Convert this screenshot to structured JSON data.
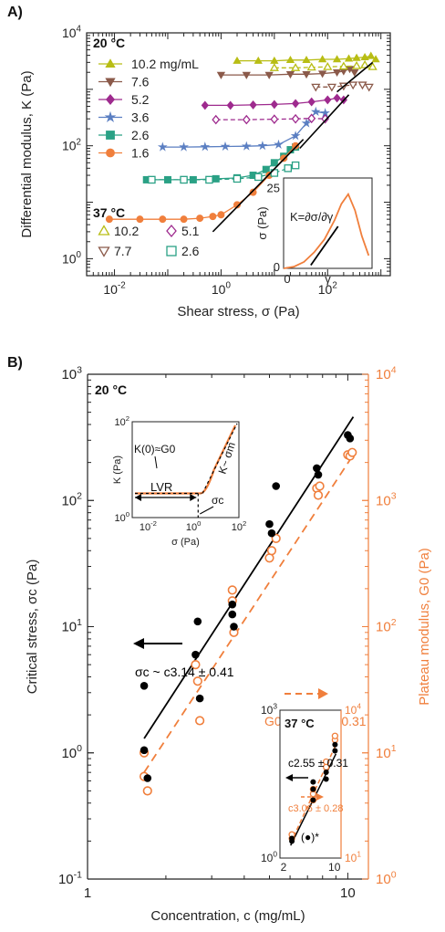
{
  "chart_data": [
    {
      "panel": "A)",
      "type": "scatter",
      "xlabel": "Shear stress, σ (Pa)",
      "ylabel": "Differential modulus, K (Pa)",
      "xscale": "log",
      "yscale": "log",
      "xlim": [
        0.003,
        1500
      ],
      "ylim": [
        0.5,
        10000
      ],
      "xticks": [
        "10-2",
        "100",
        "102"
      ],
      "yticks": [
        "100",
        "102",
        "104"
      ],
      "legend_20": {
        "title": "20 °C",
        "entries": [
          "10.2 mg/mL",
          "7.6",
          "5.2",
          "3.6",
          "2.6",
          "1.6"
        ]
      },
      "legend_37": {
        "title": "37 °C",
        "entries": [
          "10.2",
          "7.7",
          "5.1",
          "2.6"
        ]
      },
      "series": [
        {
          "name": "10.2 mg/mL",
          "temp": "20 °C",
          "color": "#b8bd14",
          "marker": "triangle-up",
          "filled": true,
          "x": [
            2,
            5,
            10,
            20,
            40,
            80,
            150,
            250,
            350,
            500,
            650,
            800
          ],
          "y": [
            3200,
            3200,
            3200,
            3300,
            3300,
            3400,
            3400,
            3500,
            3600,
            3700,
            3900,
            3400
          ]
        },
        {
          "name": "7.6",
          "temp": "20 °C",
          "color": "#8b5a4a",
          "marker": "triangle-down",
          "filled": true,
          "x": [
            1,
            3,
            8,
            20,
            40,
            80,
            150,
            200,
            260,
            320
          ],
          "y": [
            1800,
            1800,
            1800,
            1850,
            1850,
            1900,
            2000,
            2100,
            2300,
            2000
          ]
        },
        {
          "name": "5.2",
          "temp": "20 °C",
          "color": "#9e2a8e",
          "marker": "diamond",
          "filled": true,
          "x": [
            0.5,
            1.5,
            4,
            10,
            25,
            50,
            100,
            150,
            200
          ],
          "y": [
            520,
            520,
            530,
            540,
            560,
            600,
            650,
            700,
            650
          ]
        },
        {
          "name": "3.6",
          "temp": "20 °C",
          "color": "#5b7fc2",
          "marker": "star",
          "filled": true,
          "x": [
            0.08,
            0.2,
            0.5,
            1.2,
            3,
            6,
            12,
            25,
            40,
            60,
            90
          ],
          "y": [
            95,
            95,
            96,
            97,
            98,
            100,
            105,
            150,
            250,
            400,
            380
          ]
        },
        {
          "name": "2.6",
          "temp": "20 °C",
          "color": "#2aa185",
          "marker": "square",
          "filled": true,
          "x": [
            0.04,
            0.1,
            0.3,
            0.8,
            2,
            4,
            7,
            10,
            15,
            20,
            25
          ],
          "y": [
            25,
            25,
            25,
            26,
            27,
            30,
            38,
            50,
            65,
            85,
            95
          ]
        },
        {
          "name": "1.6",
          "temp": "20 °C",
          "color": "#f07f3c",
          "marker": "circle",
          "filled": true,
          "x": [
            0.008,
            0.03,
            0.08,
            0.2,
            0.4,
            0.7,
            1,
            2,
            4,
            8,
            15,
            25
          ],
          "y": [
            5,
            5,
            5,
            5,
            5.2,
            5.6,
            6,
            9,
            15,
            30,
            60,
            100
          ]
        },
        {
          "name": "10.2",
          "temp": "37 °C",
          "color": "#b8bd14",
          "marker": "triangle-up",
          "filled": false,
          "x": [
            10,
            25,
            50,
            100,
            200,
            350,
            500,
            700
          ],
          "y": [
            2400,
            2400,
            2450,
            2500,
            2550,
            2600,
            2700,
            2500
          ]
        },
        {
          "name": "7.7",
          "temp": "37 °C",
          "color": "#8b5a4a",
          "marker": "triangle-down",
          "filled": false,
          "x": [
            60,
            120,
            200,
            300,
            450,
            600
          ],
          "y": [
            1100,
            1100,
            1150,
            1200,
            1200,
            1100
          ]
        },
        {
          "name": "5.1",
          "temp": "37 °C",
          "color": "#9e2a8e",
          "marker": "diamond",
          "filled": false,
          "x": [
            0.8,
            3,
            10,
            25,
            50,
            90
          ],
          "y": [
            290,
            290,
            295,
            300,
            305,
            300
          ]
        },
        {
          "name": "2.6",
          "temp": "37 °C",
          "color": "#2aa185",
          "marker": "square",
          "filled": false,
          "x": [
            0.05,
            0.2,
            0.6,
            2,
            5,
            10,
            18,
            25
          ],
          "y": [
            25,
            25,
            25,
            26,
            28,
            33,
            40,
            45
          ]
        }
      ],
      "fit_lines": [
        {
          "x": [
            0.7,
            35
          ],
          "y": [
            3,
            130
          ]
        },
        {
          "x": [
            30,
            250
          ],
          "y": [
            90,
            800
          ]
        },
        {
          "x": [
            150,
            700
          ],
          "y": [
            900,
            3000
          ]
        }
      ],
      "inset": {
        "type": "line",
        "annotation": "K=∂σ/∂γ",
        "xlabel": "γ",
        "ylabel": "σ (Pa)",
        "yticks": [
          "0",
          "25"
        ],
        "xticks": [
          "0"
        ],
        "ylim": [
          0,
          25
        ],
        "curve_x": [
          0,
          0.15,
          0.3,
          0.45,
          0.6,
          0.75,
          0.85,
          0.95,
          1.05,
          1.15,
          1.25
        ],
        "curve_y": [
          0,
          0.5,
          2,
          5,
          9,
          15,
          20,
          23,
          18,
          10,
          4
        ],
        "tangent_x": [
          0.4,
          0.8
        ],
        "tangent_y": [
          1,
          13
        ]
      }
    },
    {
      "panel": "B)",
      "type": "scatter",
      "xlabel": "Concentration, c (mg/mL)",
      "ylabel_left": "Critical stress, σc (Pa)",
      "ylabel_right": "Plateau modulus, G0 (Pa)",
      "xscale": "log",
      "yscale": "log",
      "xlim": [
        1,
        12
      ],
      "ylim_left": [
        0.1,
        1000
      ],
      "ylim_right": [
        1,
        10000
      ],
      "xticks": [
        "1",
        "10"
      ],
      "yticks_left": [
        "10-1",
        "100",
        "101",
        "102",
        "103"
      ],
      "yticks_right": [
        "100",
        "101",
        "102",
        "103",
        "104"
      ],
      "temp_label": "20 °C",
      "critical_stress": {
        "color": "#000000",
        "x": [
          1.65,
          1.65,
          1.7,
          2.6,
          2.65,
          2.7,
          3.6,
          3.6,
          3.65,
          5.0,
          5.1,
          5.3,
          7.6,
          7.7,
          10.0,
          10.2
        ],
        "y": [
          3.4,
          1.05,
          0.63,
          6,
          11,
          2.7,
          12.5,
          15,
          10,
          65,
          55,
          130,
          180,
          160,
          330,
          310
        ]
      },
      "plateau_modulus": {
        "color": "#f07f3c",
        "x": [
          1.65,
          1.65,
          1.7,
          2.6,
          2.65,
          2.7,
          3.6,
          3.6,
          3.65,
          5.0,
          5.1,
          5.3,
          7.6,
          7.7,
          7.8,
          10.0,
          10.2,
          10.4
        ],
        "y": [
          10,
          6.5,
          5,
          50,
          37,
          18,
          195,
          160,
          90,
          350,
          400,
          500,
          1250,
          1100,
          1300,
          2300,
          2250,
          2400
        ]
      },
      "fit_sigma": {
        "x": [
          1.65,
          10.5
        ],
        "y": [
          1.3,
          460
        ],
        "label": "σc ~ c3.14 ± 0.41"
      },
      "fit_G0": {
        "x": [
          1.65,
          10.5
        ],
        "y": [
          7,
          2300
        ],
        "label": "G0 ~ c3.18 ± 0.31"
      },
      "inset_schematic": {
        "xlabel": "σ (Pa)",
        "ylabel": "K (Pa)",
        "xticks": [
          "10-2",
          "100",
          "102"
        ],
        "yticks": [
          "100",
          "102"
        ],
        "labels": {
          "k0": "K(0)≈G0",
          "slope": "K~ σm",
          "lvr": "LVR",
          "sigma_c": "σc"
        }
      },
      "inset_37": {
        "temp_label": "37 °C",
        "xticks": [
          "2",
          "10"
        ],
        "yticks_left": [
          "100",
          "103"
        ],
        "yticks_right": [
          "101",
          "104"
        ],
        "fit_sigma_label": "c2.55 ± 0.31",
        "fit_G0_label": "c3.06 ± 0.28",
        "outlier_label": "(●)*",
        "critical_stress": {
          "x": [
            2.6,
            2.6,
            5.1,
            5.1,
            5.1,
            7.7,
            7.7,
            10.2,
            10.2
          ],
          "y": [
            2.2,
            2.5,
            15,
            25,
            35,
            40,
            55,
            150,
            200
          ]
        },
        "plateau_modulus": {
          "x": [
            2.6,
            2.6,
            5.1,
            5.1,
            5.1,
            7.7,
            7.7,
            10.2,
            10.2
          ],
          "y": [
            25,
            30,
            150,
            200,
            250,
            700,
            900,
            2500,
            3000
          ]
        }
      }
    }
  ]
}
